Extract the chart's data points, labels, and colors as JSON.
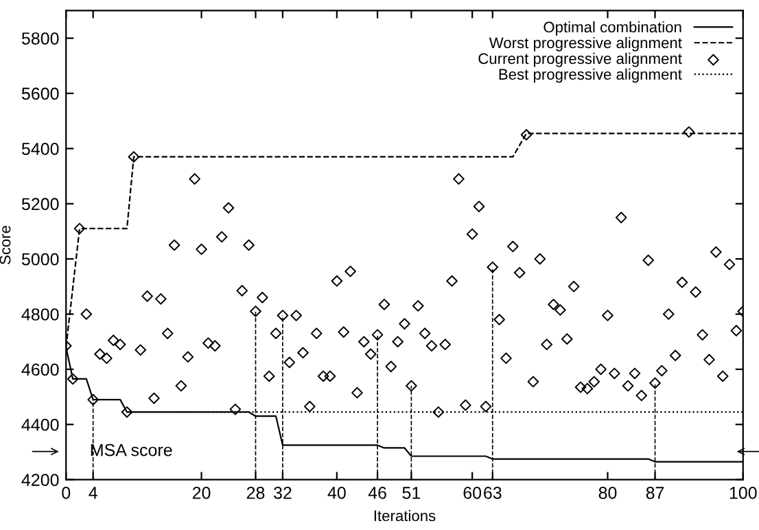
{
  "chart_data": {
    "type": "line",
    "xlabel": "Iterations",
    "ylabel": "Score",
    "xlim": [
      0,
      100
    ],
    "ylim": [
      4200,
      5900
    ],
    "xticks": [
      0,
      4,
      20,
      28,
      32,
      40,
      46,
      51,
      60,
      63,
      80,
      87,
      100
    ],
    "yticks": [
      4200,
      4400,
      4600,
      4800,
      5000,
      5200,
      5400,
      5600,
      5800
    ],
    "grid": false,
    "legend": "top right",
    "series": [
      {
        "name": "Optimal combination",
        "line_style": "solid",
        "color": "#000000",
        "x": [
          0,
          1,
          3,
          4,
          8,
          9,
          27,
          28,
          31,
          32,
          46,
          47,
          50,
          51,
          62,
          63,
          86,
          87,
          100
        ],
        "values": [
          4680,
          4565,
          4565,
          4490,
          4490,
          4445,
          4445,
          4430,
          4430,
          4325,
          4325,
          4315,
          4315,
          4285,
          4285,
          4275,
          4275,
          4265,
          4265
        ]
      },
      {
        "name": "Worst progressive alignment",
        "line_style": "dashed",
        "color": "#000000",
        "x": [
          0,
          2,
          9,
          10,
          66,
          68,
          100
        ],
        "values": [
          4680,
          5110,
          5110,
          5370,
          5370,
          5455,
          5455
        ]
      },
      {
        "name": "Current progressive alignment",
        "type": "scatter",
        "marker": "diamond",
        "color": "#000000",
        "x": [
          0,
          1,
          2,
          3,
          4,
          5,
          6,
          7,
          8,
          9,
          10,
          11,
          12,
          13,
          14,
          15,
          16,
          17,
          18,
          19,
          20,
          21,
          22,
          23,
          24,
          25,
          26,
          27,
          28,
          29,
          30,
          31,
          32,
          33,
          34,
          35,
          36,
          37,
          38,
          39,
          40,
          41,
          42,
          43,
          44,
          45,
          46,
          47,
          48,
          49,
          50,
          51,
          52,
          53,
          54,
          55,
          56,
          57,
          58,
          59,
          60,
          61,
          62,
          63,
          64,
          65,
          66,
          67,
          68,
          69,
          70,
          71,
          72,
          73,
          74,
          75,
          76,
          77,
          78,
          79,
          80,
          81,
          82,
          83,
          84,
          85,
          86,
          87,
          88,
          89,
          90,
          91,
          92,
          93,
          94,
          95,
          96,
          97,
          98,
          99,
          100
        ],
        "values": [
          4685,
          4565,
          5110,
          4800,
          4490,
          4655,
          4640,
          4705,
          4690,
          4445,
          5370,
          4670,
          4865,
          4495,
          4855,
          4730,
          5050,
          4540,
          4645,
          5290,
          5035,
          4695,
          4685,
          5080,
          5185,
          4455,
          4885,
          5050,
          4810,
          4860,
          4575,
          4730,
          4795,
          4625,
          4795,
          4660,
          4465,
          4730,
          4575,
          4575,
          4920,
          4735,
          4955,
          4515,
          4700,
          4655,
          4725,
          4835,
          4610,
          4700,
          4765,
          4540,
          4830,
          4730,
          4685,
          4445,
          4690,
          4920,
          5290,
          4470,
          5090,
          5190,
          4465,
          4970,
          4780,
          4640,
          5045,
          4950,
          5450,
          4555,
          5000,
          4690,
          4835,
          4815,
          4710,
          4900,
          4535,
          4530,
          4555,
          4600,
          4795,
          4585,
          5150,
          4540,
          4585,
          4505,
          4995,
          4550,
          4595,
          4800,
          4650,
          4915,
          5460,
          4880,
          4725,
          4635,
          5025,
          4575,
          4980,
          4740,
          4810
        ]
      },
      {
        "name": "Best progressive alignment",
        "line_style": "dotted",
        "color": "#000000",
        "x": [
          9,
          100
        ],
        "values": [
          4445,
          4445
        ]
      }
    ],
    "ref_lines": [
      {
        "axis": "x",
        "value": 4,
        "line_style": "dashed"
      },
      {
        "axis": "x",
        "value": 28,
        "line_style": "dashed"
      },
      {
        "axis": "x",
        "value": 32,
        "line_style": "dashed"
      },
      {
        "axis": "x",
        "value": 46,
        "line_style": "dashed"
      },
      {
        "axis": "x",
        "value": 51,
        "line_style": "dashed"
      },
      {
        "axis": "x",
        "value": 63,
        "line_style": "dashed"
      },
      {
        "axis": "x",
        "value": 87,
        "line_style": "dashed"
      }
    ],
    "annotations": [
      "MSA score"
    ]
  }
}
